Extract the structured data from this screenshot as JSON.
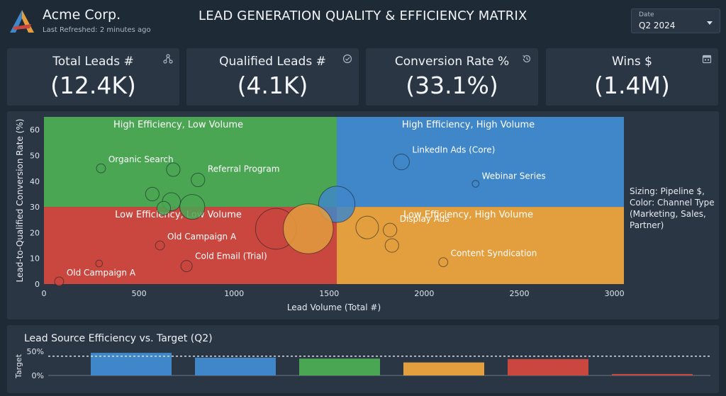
{
  "header": {
    "company": "Acme Corp.",
    "refreshed": "Last Refreshed: 2 minutes ago",
    "title": "LEAD GENERATION QUALITY & EFFICIENCY MATRIX",
    "date_label": "Date",
    "date_value": "Q2 2024"
  },
  "kpis": [
    {
      "label": "Total Leads #",
      "value": "(12.4K)",
      "icon": "network-icon"
    },
    {
      "label": "Qualified Leads #",
      "value": "(4.1K)",
      "icon": "check-circle-icon"
    },
    {
      "label": "Conversion Rate %",
      "value": "(33.1%)",
      "icon": "history-icon"
    },
    {
      "label": "Wins $",
      "value": "(1.4M)",
      "icon": "calendar-icon"
    }
  ],
  "side_note": "Sizing: Pipeline $, Color: Channel Type (Marketing, Sales, Partner)",
  "colors": {
    "green": "#4aa653",
    "blue": "#3f87c9",
    "red": "#c9473f",
    "orange": "#e39e3e",
    "panel": "#2b3644",
    "background": "#1f2a37"
  },
  "chart_data": [
    {
      "type": "scatter",
      "xlabel": "Lead Volume (Total #)",
      "ylabel": "Lead-to-Qualified Conversion Rate (%)",
      "xlim": [
        0,
        3050
      ],
      "ylim": [
        0,
        65
      ],
      "x_ticks": [
        0,
        500,
        1000,
        1500,
        2000,
        2500,
        3000
      ],
      "y_ticks": [
        0,
        10,
        20,
        30,
        40,
        50,
        60
      ],
      "x_divider": 1540,
      "y_divider": 30,
      "quadrants": [
        {
          "label": "High Efficiency, Low Volume",
          "color": "#4aa653",
          "x0": 0,
          "x1": 1540,
          "y0": 30,
          "y1": 65
        },
        {
          "label": "High Efficiency, High Volume",
          "color": "#3f87c9",
          "x0": 1540,
          "x1": 3050,
          "y0": 30,
          "y1": 65
        },
        {
          "label": "Low Efficiency, Low Volume",
          "color": "#c9473f",
          "x0": 0,
          "x1": 1540,
          "y0": 0,
          "y1": 30
        },
        {
          "label": "Low Efficiency, High Volume",
          "color": "#e39e3e",
          "x0": 1540,
          "x1": 3050,
          "y0": 0,
          "y1": 30
        }
      ],
      "points": [
        {
          "x": 300,
          "y": 45,
          "size": 2,
          "label": "Organic Search",
          "color": "#4aa653"
        },
        {
          "x": 680,
          "y": 44.5,
          "size": 3,
          "label": "",
          "color": "#4aa653"
        },
        {
          "x": 810,
          "y": 40.5,
          "size": 3,
          "label": "Referral Program",
          "color": "#4aa653"
        },
        {
          "x": 570,
          "y": 35,
          "size": 3,
          "label": "",
          "color": "#4aa653"
        },
        {
          "x": 670,
          "y": 32,
          "size": 4,
          "label": "",
          "color": "#4aa653"
        },
        {
          "x": 780,
          "y": 30,
          "size": 5.5,
          "label": "",
          "color": "#4aa653"
        },
        {
          "x": 630,
          "y": 29.5,
          "size": 3,
          "label": "",
          "color": "#4aa653"
        },
        {
          "x": 1540,
          "y": 31,
          "size": 8,
          "label": "",
          "color": "#3f87c9"
        },
        {
          "x": 1880,
          "y": 47.5,
          "size": 3.5,
          "label": "LinkedIn Ads (Core)",
          "color": "#3f87c9"
        },
        {
          "x": 2270,
          "y": 39,
          "size": 1.5,
          "label": "Webinar Series",
          "color": "#3f87c9"
        },
        {
          "x": 1220,
          "y": 21.5,
          "size": 9,
          "label": "",
          "color": "#c9473f"
        },
        {
          "x": 1390,
          "y": 21.5,
          "size": 11,
          "label": "",
          "color": "#e39e3e"
        },
        {
          "x": 1700,
          "y": 22,
          "size": 5,
          "label": "",
          "color": "#e39e3e"
        },
        {
          "x": 1820,
          "y": 21,
          "size": 3,
          "label": "Display Ads",
          "color": "#e39e3e"
        },
        {
          "x": 1830,
          "y": 15,
          "size": 3,
          "label": "",
          "color": "#e39e3e"
        },
        {
          "x": 2100,
          "y": 8.5,
          "size": 2,
          "label": "Content Syndication",
          "color": "#e39e3e"
        },
        {
          "x": 610,
          "y": 15,
          "size": 2,
          "label": "Old Campaign A",
          "color": "#c9473f"
        },
        {
          "x": 750,
          "y": 7,
          "size": 2.5,
          "label": "Cold Email (Trial)",
          "color": "#c9473f"
        },
        {
          "x": 290,
          "y": 8,
          "size": 1.5,
          "label": "",
          "color": "#c9473f"
        },
        {
          "x": 80,
          "y": 1,
          "size": 2,
          "label": "Old Campaign A",
          "color": "#c9473f"
        }
      ]
    },
    {
      "type": "bar",
      "title": "Lead Source Efficiency vs. Target (Q2)",
      "ylabel": "Target",
      "y_ticks": [
        "50%",
        "0%"
      ],
      "ylim": [
        0,
        50
      ],
      "target": 40,
      "values": [
        47,
        37,
        35,
        27,
        34,
        3
      ],
      "colors": [
        "#3f87c9",
        "#3f87c9",
        "#4aa653",
        "#e39e3e",
        "#c9473f",
        "#c9473f"
      ]
    }
  ]
}
